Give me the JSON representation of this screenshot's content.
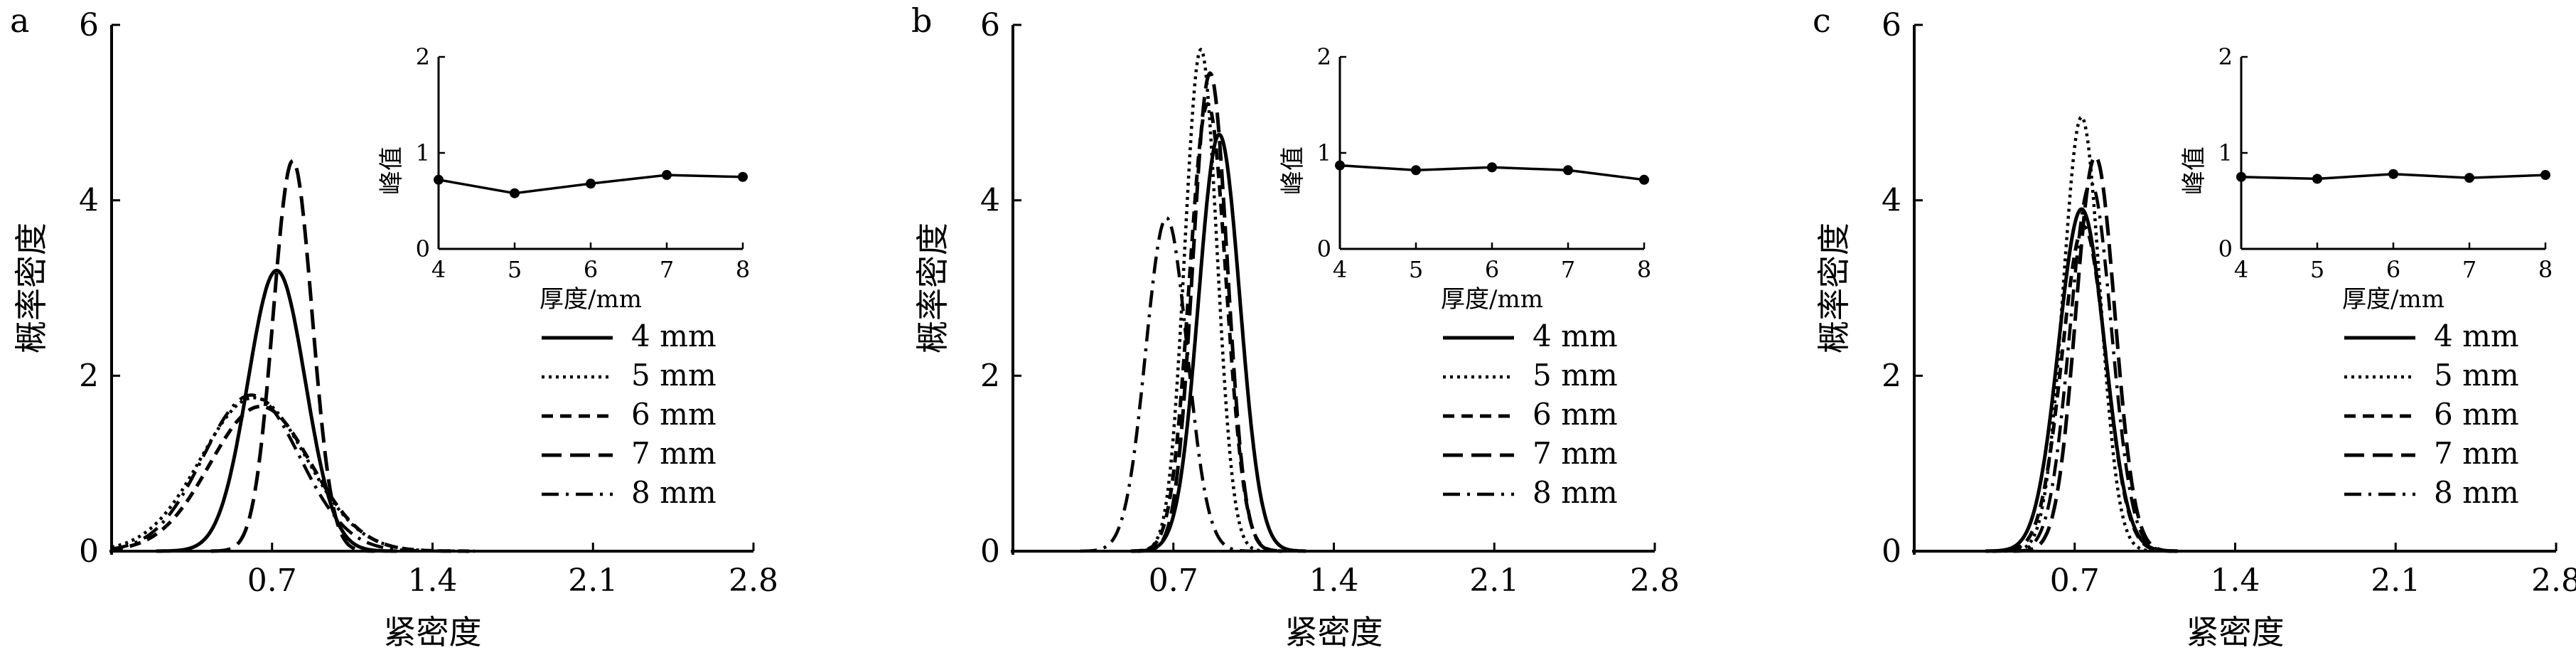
{
  "chart_data": [
    {
      "panel": "a",
      "type": "line",
      "xlabel": "紧密度",
      "ylabel": "概率密度",
      "xlim": [
        0,
        2.8
      ],
      "ylim": [
        0,
        6
      ],
      "xticks": [
        "0.7",
        "1.4",
        "2.1",
        "2.8"
      ],
      "yticks": [
        "0",
        "2",
        "4",
        "6"
      ],
      "legend_position": "right-middle",
      "series": [
        {
          "name": "4 mm",
          "style": "solid",
          "mean": 0.72,
          "sd": 0.125,
          "peak": 3.2
        },
        {
          "name": "5 mm",
          "style": "dotted",
          "mean": 0.62,
          "sd": 0.23,
          "peak": 1.75
        },
        {
          "name": "6 mm",
          "style": "dashed",
          "mean": 0.65,
          "sd": 0.22,
          "peak": 1.65
        },
        {
          "name": "7 mm",
          "style": "dashed-long",
          "mean": 0.79,
          "sd": 0.085,
          "peak": 4.45
        },
        {
          "name": "8 mm",
          "style": "dashdot",
          "mean": 0.61,
          "sd": 0.21,
          "peak": 1.78
        }
      ],
      "inset": {
        "xlabel": "厚度/mm",
        "ylabel": "峰值",
        "xticks": [
          "4",
          "5",
          "6",
          "7",
          "8"
        ],
        "yticks": [
          "0",
          "1",
          "2"
        ],
        "x": [
          4,
          5,
          6,
          7,
          8
        ],
        "y": [
          0.72,
          0.58,
          0.68,
          0.77,
          0.75
        ]
      }
    },
    {
      "panel": "b",
      "type": "line",
      "xlabel": "紧密度",
      "ylabel": "概率密度",
      "xlim": [
        0,
        2.8
      ],
      "ylim": [
        0,
        6
      ],
      "xticks": [
        "0.7",
        "1.4",
        "2.1",
        "2.8"
      ],
      "yticks": [
        "0",
        "2",
        "4",
        "6"
      ],
      "legend_position": "right-middle",
      "series": [
        {
          "name": "4 mm",
          "style": "solid",
          "mean": 0.9,
          "sd": 0.09,
          "peak": 4.75
        },
        {
          "name": "5 mm",
          "style": "dotted",
          "mean": 0.82,
          "sd": 0.07,
          "peak": 5.72
        },
        {
          "name": "6 mm",
          "style": "dashed",
          "mean": 0.85,
          "sd": 0.08,
          "peak": 5.1
        },
        {
          "name": "7 mm",
          "style": "dashed-long",
          "mean": 0.86,
          "sd": 0.075,
          "peak": 5.45
        },
        {
          "name": "8 mm",
          "style": "dashdot",
          "mean": 0.67,
          "sd": 0.09,
          "peak": 3.8
        }
      ],
      "inset": {
        "xlabel": "厚度/mm",
        "ylabel": "峰值",
        "xticks": [
          "4",
          "5",
          "6",
          "7",
          "8"
        ],
        "yticks": [
          "0",
          "1",
          "2"
        ],
        "x": [
          4,
          5,
          6,
          7,
          8
        ],
        "y": [
          0.87,
          0.82,
          0.85,
          0.82,
          0.72
        ]
      }
    },
    {
      "panel": "c",
      "type": "line",
      "xlabel": "紧密度",
      "ylabel": "概率密度",
      "xlim": [
        0,
        2.8
      ],
      "ylim": [
        0,
        6
      ],
      "xticks": [
        "0.7",
        "1.4",
        "2.1",
        "2.8"
      ],
      "yticks": [
        "0",
        "2",
        "4",
        "6"
      ],
      "legend_position": "right-middle",
      "series": [
        {
          "name": "4 mm",
          "style": "solid",
          "mean": 0.73,
          "sd": 0.1,
          "peak": 3.9
        },
        {
          "name": "5 mm",
          "style": "dotted",
          "mean": 0.73,
          "sd": 0.08,
          "peak": 4.95
        },
        {
          "name": "6 mm",
          "style": "dashed",
          "mean": 0.74,
          "sd": 0.095,
          "peak": 3.7
        },
        {
          "name": "7 mm",
          "style": "dashed-long",
          "mean": 0.79,
          "sd": 0.085,
          "peak": 4.5
        },
        {
          "name": "8 mm",
          "style": "dashdot",
          "mean": 0.77,
          "sd": 0.09,
          "peak": 4.2
        }
      ],
      "inset": {
        "xlabel": "厚度/mm",
        "ylabel": "峰值",
        "xticks": [
          "4",
          "5",
          "6",
          "7",
          "8"
        ],
        "yticks": [
          "0",
          "1",
          "2"
        ],
        "x": [
          4,
          5,
          6,
          7,
          8
        ],
        "y": [
          0.75,
          0.73,
          0.78,
          0.74,
          0.77
        ]
      }
    }
  ]
}
